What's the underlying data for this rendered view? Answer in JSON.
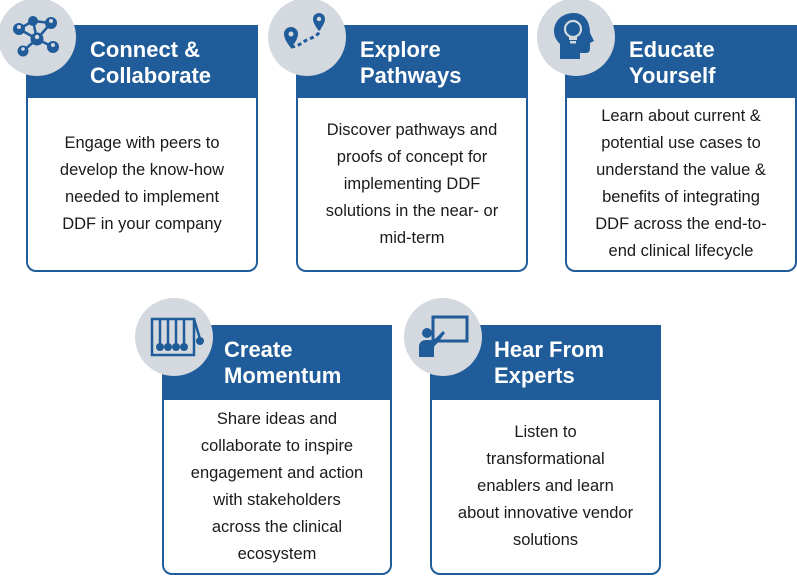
{
  "colors": {
    "header": "#1f5c99",
    "badge": "#d4d9e0",
    "icon": "#1f5c99",
    "border": "#1f5c99"
  },
  "cards": [
    {
      "title_line1": "Connect &",
      "title_line2": "Collaborate",
      "icon": "network-people-icon",
      "body": "Engage with  peers to\ndevelop the know-how\nneeded to implement\nDDF in your company"
    },
    {
      "title_line1": "Explore",
      "title_line2": "Pathways",
      "icon": "route-pins-icon",
      "body": "Discover pathways and\nproofs of concept for\nimplementing DDF\nsolutions in the near- or\nmid-term"
    },
    {
      "title_line1": "Educate",
      "title_line2": "Yourself",
      "icon": "head-lightbulb-icon",
      "body": "Learn about current &\npotential use cases to\nunderstand the value &\nbenefits of integrating\nDDF across the end-to-\nend clinical lifecycle"
    },
    {
      "title_line1": "Create",
      "title_line2": "Momentum",
      "icon": "newtons-cradle-icon",
      "body": "Share ideas and\ncollaborate to inspire\nengagement and action\nwith stakeholders\nacross the clinical\necosystem"
    },
    {
      "title_line1": "Hear From",
      "title_line2": "Experts",
      "icon": "presenter-board-icon",
      "body": "Listen to\ntransformational\nenablers and learn\nabout innovative vendor\nsolutions"
    }
  ]
}
